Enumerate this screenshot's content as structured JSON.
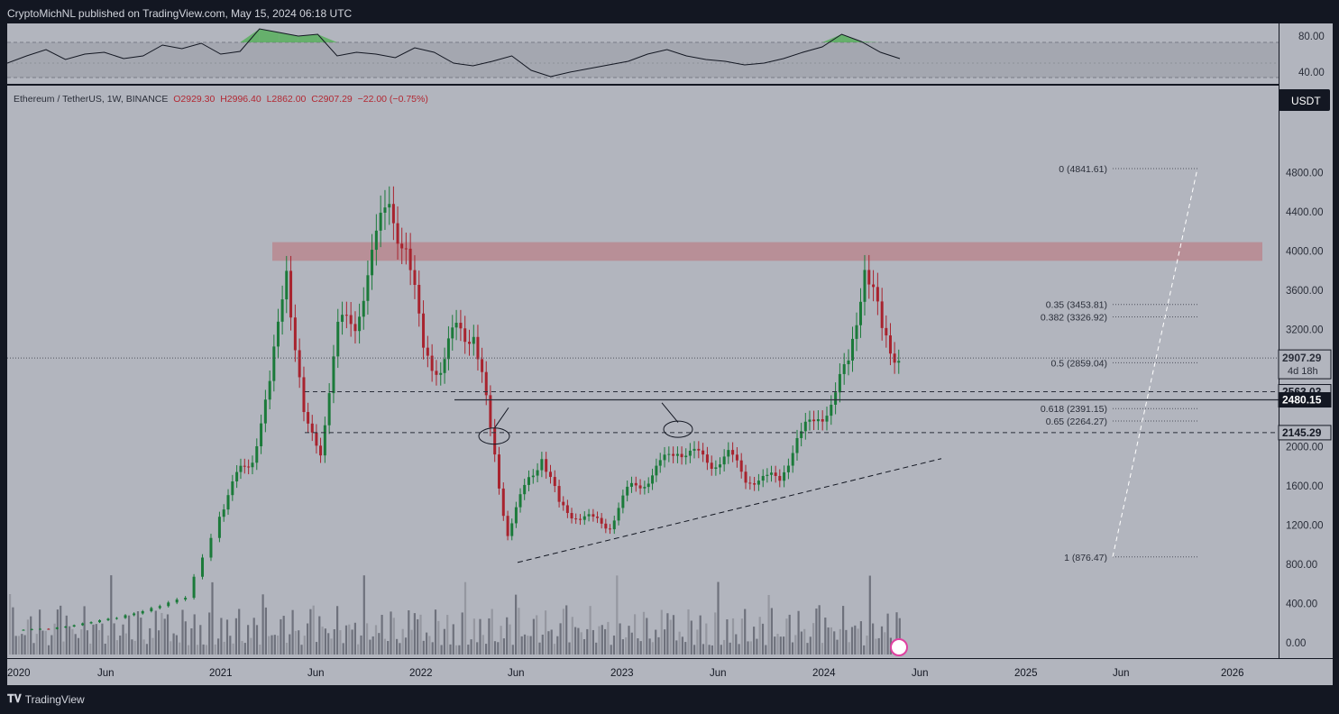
{
  "header": {
    "publisher": "CryptoMichNL published on TradingView.com, May 15, 2024 06:18 UTC"
  },
  "legend": {
    "symbol": "Ethereum / TetherUS, 1W, BINANCE",
    "open": "O2929.30",
    "high": "H2996.40",
    "low": "L2862.00",
    "close": "C2907.29",
    "change": "−22.00 (−0.75%)"
  },
  "currency_badge": "USDT",
  "footer": {
    "brand": "TradingView"
  },
  "chart_data": {
    "type": "candlestick",
    "main_pane": {
      "price_axis_ticks": [
        "4800.00",
        "4400.00",
        "4000.00",
        "3600.00",
        "3200.00",
        "2000.00",
        "1600.00",
        "1200.00",
        "800.00",
        "400.00",
        "0.00"
      ],
      "ylim": [
        0,
        4900
      ],
      "time_axis_ticks": [
        "2020",
        "Jun",
        "2021",
        "Jun",
        "2022",
        "Jun",
        "2023",
        "Jun",
        "2024",
        "Jun",
        "2025",
        "Jun",
        "2026"
      ],
      "last_price": {
        "value": "2907.29",
        "countdown": "4d 18h"
      },
      "price_labels": [
        {
          "value": "2563.03",
          "style": "dashed"
        },
        {
          "value": "2480.15",
          "style": "solid"
        },
        {
          "value": "2145.29",
          "style": "dashed"
        }
      ],
      "fib_levels": [
        {
          "label": "0 (4841.61)",
          "price": 4841.61
        },
        {
          "label": "0.35 (3453.81)",
          "price": 3453.81
        },
        {
          "label": "0.382 (3326.92)",
          "price": 3326.92
        },
        {
          "label": "0.5 (2859.04)",
          "price": 2859.04
        },
        {
          "label": "0.618 (2391.15)",
          "price": 2391.15
        },
        {
          "label": "0.65 (2264.27)",
          "price": 2264.27
        },
        {
          "label": "1 (876.47)",
          "price": 876.47
        }
      ],
      "resistance_zone": [
        3900,
        4090
      ],
      "close_series": [
        {
          "x": "2020-01",
          "y": 130
        },
        {
          "x": "2020-03",
          "y": 140
        },
        {
          "x": "2020-05",
          "y": 200
        },
        {
          "x": "2020-07",
          "y": 250
        },
        {
          "x": "2020-09",
          "y": 360
        },
        {
          "x": "2020-11",
          "y": 450
        },
        {
          "x": "2021-01",
          "y": 1300
        },
        {
          "x": "2021-02",
          "y": 1700
        },
        {
          "x": "2021-03",
          "y": 1900
        },
        {
          "x": "2021-04",
          "y": 2600
        },
        {
          "x": "2021-05",
          "y": 3900
        },
        {
          "x": "2021-06",
          "y": 2200
        },
        {
          "x": "2021-07",
          "y": 2000
        },
        {
          "x": "2021-08",
          "y": 3200
        },
        {
          "x": "2021-09",
          "y": 3300
        },
        {
          "x": "2021-10",
          "y": 3900
        },
        {
          "x": "2021-11",
          "y": 4600
        },
        {
          "x": "2021-12",
          "y": 3900
        },
        {
          "x": "2022-01",
          "y": 3100
        },
        {
          "x": "2022-02",
          "y": 2700
        },
        {
          "x": "2022-03",
          "y": 3300
        },
        {
          "x": "2022-04",
          "y": 3100
        },
        {
          "x": "2022-05",
          "y": 2200
        },
        {
          "x": "2022-06",
          "y": 1100
        },
        {
          "x": "2022-07",
          "y": 1600
        },
        {
          "x": "2022-08",
          "y": 1900
        },
        {
          "x": "2022-09",
          "y": 1400
        },
        {
          "x": "2022-10",
          "y": 1300
        },
        {
          "x": "2022-11",
          "y": 1250
        },
        {
          "x": "2022-12",
          "y": 1200
        },
        {
          "x": "2023-01",
          "y": 1550
        },
        {
          "x": "2023-02",
          "y": 1650
        },
        {
          "x": "2023-03",
          "y": 1800
        },
        {
          "x": "2023-04",
          "y": 2000
        },
        {
          "x": "2023-05",
          "y": 1900
        },
        {
          "x": "2023-06",
          "y": 1850
        },
        {
          "x": "2023-07",
          "y": 1900
        },
        {
          "x": "2023-08",
          "y": 1700
        },
        {
          "x": "2023-09",
          "y": 1650
        },
        {
          "x": "2023-10",
          "y": 1700
        },
        {
          "x": "2023-11",
          "y": 2050
        },
        {
          "x": "2023-12",
          "y": 2300
        },
        {
          "x": "2024-01",
          "y": 2400
        },
        {
          "x": "2024-02",
          "y": 2900
        },
        {
          "x": "2024-03",
          "y": 3800
        },
        {
          "x": "2024-04",
          "y": 3200
        },
        {
          "x": "2024-05",
          "y": 2907.29
        }
      ]
    },
    "indicator_pane": {
      "axis_ticks": [
        "80.00",
        "40.00"
      ],
      "ylim": [
        30,
        90
      ],
      "band": [
        30,
        70
      ],
      "series": [
        50,
        58,
        65,
        54,
        60,
        62,
        55,
        58,
        70,
        66,
        72,
        60,
        63,
        88,
        84,
        80,
        82,
        58,
        62,
        60,
        56,
        67,
        62,
        50,
        47,
        52,
        58,
        42,
        35,
        40,
        44,
        48,
        52,
        60,
        65,
        58,
        54,
        52,
        48,
        50,
        55,
        62,
        68,
        82,
        74,
        62,
        55
      ]
    }
  }
}
